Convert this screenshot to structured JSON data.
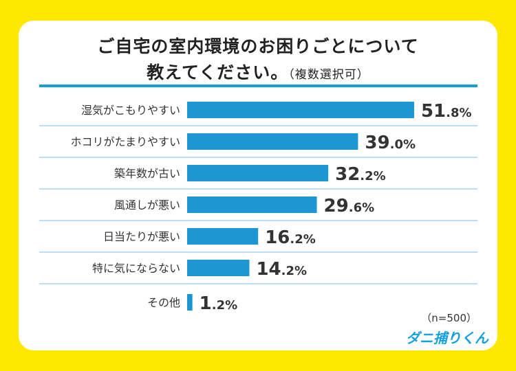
{
  "chart_data": {
    "type": "bar",
    "orientation": "horizontal",
    "title_line1": "ご自宅の室内環境のお困りごとについて",
    "title_line2": "教えてください。",
    "subtitle": "（複数選択可）",
    "categories": [
      "湿気がこもりやすい",
      "ホコリがたまりやすい",
      "築年数が古い",
      "風通しが悪い",
      "日当たりが悪い",
      "特に気にならない",
      "その他"
    ],
    "values": [
      51.8,
      39.0,
      32.2,
      29.6,
      16.2,
      14.2,
      1.2
    ],
    "unit": "%",
    "bar_color": "#1e96d4",
    "grid": false
  },
  "note": "（n=500）",
  "logo": "ダニ捕りくん"
}
